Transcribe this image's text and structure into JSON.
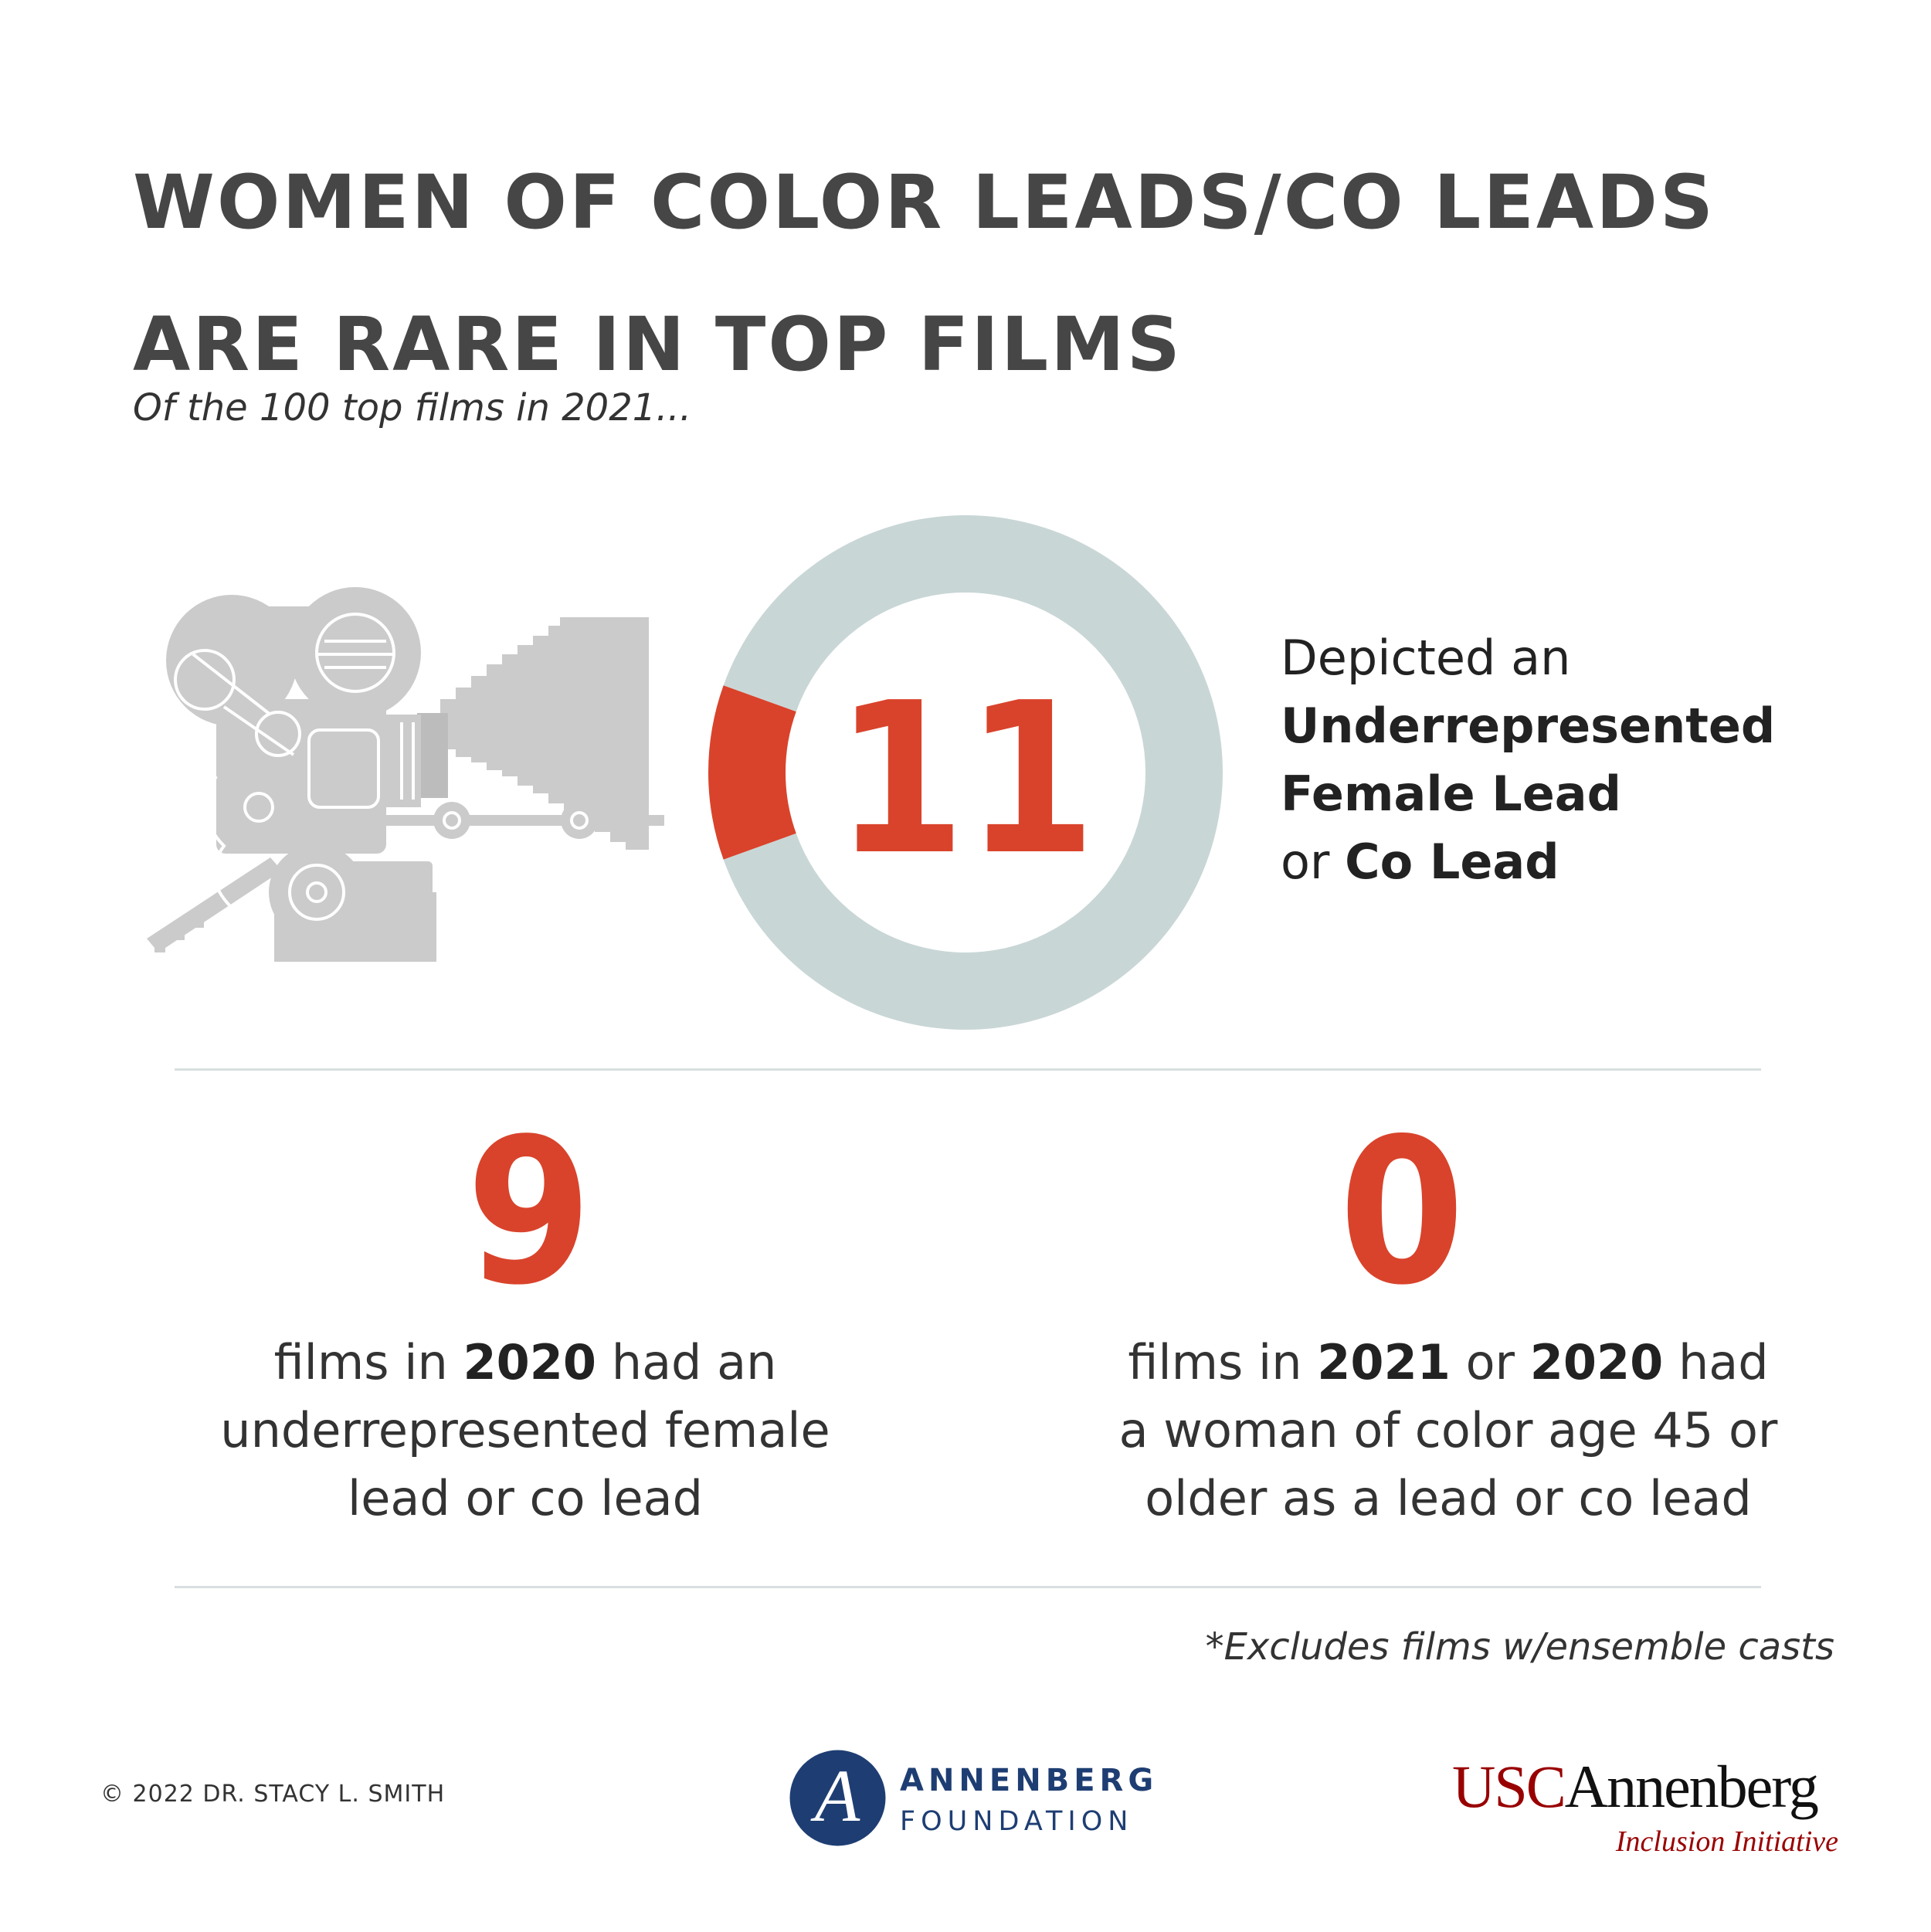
{
  "title_lines": [
    "WOMEN OF COLOR LEADS/CO LEADS",
    "ARE RARE IN TOP FILMS"
  ],
  "intro": "Of the 100 top films in 2021...",
  "chart_data": {
    "type": "pie",
    "style": "donut",
    "total": 100,
    "categories": [
      "Depicted an Underrepresented Female Lead or Co Lead",
      "Other films"
    ],
    "values": [
      11,
      89
    ],
    "colors": [
      "#d9432b",
      "#c9d6d6"
    ],
    "center_label": "11"
  },
  "main_stat": {
    "line1": "Depicted an",
    "line2": "Underrepresented",
    "line3": "Female Lead",
    "line4_prefix": "or ",
    "line4_bold": "Co Lead"
  },
  "stat_2020": {
    "number": "9",
    "line1_a": "films in ",
    "line1_b": "2020",
    "line1_c": " had an",
    "line2": "underrepresented female",
    "line3": "lead or co lead"
  },
  "stat_age": {
    "number": "0",
    "line1_a": "films in ",
    "line1_b": "2021",
    "line1_c": " or ",
    "line1_d": "2020",
    "line1_e": " had",
    "line2": "a woman of color age 45 or",
    "line3": "older as a lead or co lead"
  },
  "footnote": "*Excludes films w/ensemble casts",
  "footer": {
    "copyright": "© 2022 DR. STACY L. SMITH",
    "foundation_line1": "ANNENBERG",
    "foundation_line2": "FOUNDATION",
    "foundation_monogram": "A",
    "usc_part1": "USC",
    "usc_part2": "Annenberg",
    "usc_sub": "Inclusion Initiative"
  },
  "colors": {
    "accent": "#d9432b",
    "ring": "#c9d6d6",
    "camera": "#cbcbcb",
    "title": "#464646",
    "foundation_blue": "#1e3e73",
    "usc_red": "#990000"
  },
  "icons": [
    "film-camera-icon",
    "annenberg-foundation-logo-icon"
  ]
}
